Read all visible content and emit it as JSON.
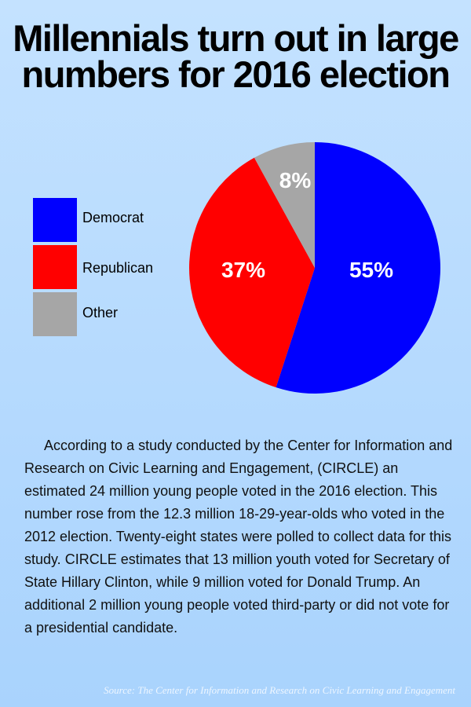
{
  "title_line1": "Millennials turn out in large",
  "title_line2": "numbers for 2016 election",
  "chart_data": {
    "type": "pie",
    "slices": [
      {
        "name": "Democrat",
        "value": 55,
        "label": "55%",
        "color": "#0000ff"
      },
      {
        "name": "Republican",
        "value": 37,
        "label": "37%",
        "color": "#ff0000"
      },
      {
        "name": "Other",
        "value": 8,
        "label": "8%",
        "color": "#a6a6a6"
      }
    ],
    "legend_placement": "left"
  },
  "body_text": "According to a study conducted by the Center for Information and Research on Civic Learning and Engagement, (CIRCLE) an estimated 24 million young people voted in the 2016 election. This number rose from the 12.3 million 18-29-year-olds who voted in the 2012 election. Twenty-eight states were polled to collect data for this study. CIRCLE estimates that 13 million youth voted for Secretary of State Hillary Clinton, while 9 million voted for Donald Trump. An additional 2 million young people voted third-party or did not vote for a presidential candidate.",
  "source": "Source: The Center for Information and Research on Civic Learning and Engagement"
}
